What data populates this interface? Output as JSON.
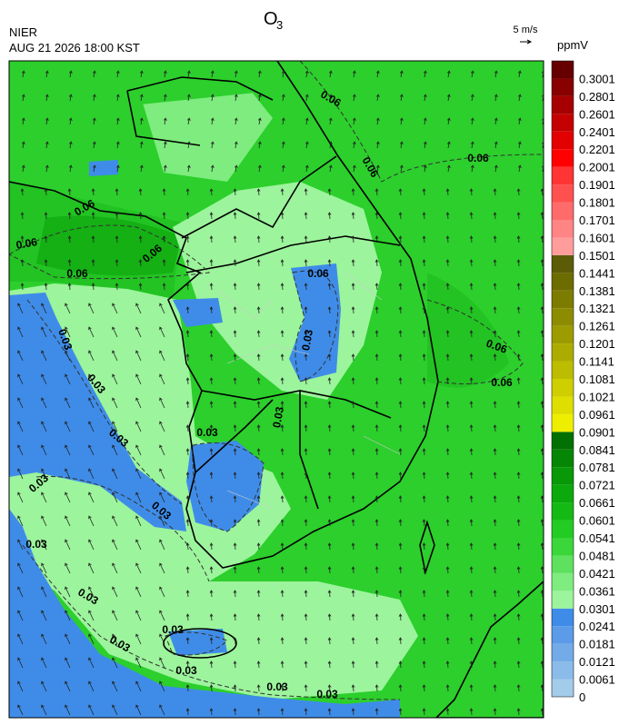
{
  "header": {
    "title": "O",
    "title_subscript": "3",
    "agency": "NIER",
    "datetime": "AUG 21 2026 18:00 KST"
  },
  "wind_legend": {
    "label": "5 m/s"
  },
  "colorbar": {
    "unit": "ppmV",
    "levels": [
      0,
      0.0061,
      0.0121,
      0.0181,
      0.0241,
      0.0301,
      0.0361,
      0.0421,
      0.0481,
      0.0541,
      0.0601,
      0.0661,
      0.0721,
      0.0781,
      0.0841,
      0.0901,
      0.0961,
      0.1021,
      0.1081,
      0.1141,
      0.1201,
      0.1261,
      0.1321,
      0.1381,
      0.1441,
      0.1501,
      0.1601,
      0.1701,
      0.1801,
      0.1901,
      0.2001,
      0.2201,
      0.2401,
      0.2601,
      0.2801,
      0.3001
    ],
    "colors": [
      "#a3cbea",
      "#8bbbe9",
      "#73abe8",
      "#5b9be8",
      "#3f8ce8",
      "#9cf49c",
      "#7eec7e",
      "#5ee15e",
      "#3ad63a",
      "#22cc22",
      "#14b914",
      "#0ca90c",
      "#089808",
      "#058605",
      "#037003",
      "#eeee00",
      "#dede00",
      "#cece00",
      "#bcbc00",
      "#acac00",
      "#9c9c00",
      "#8c8c00",
      "#7c7c00",
      "#6c6c00",
      "#5c5c08",
      "#ff9d9d",
      "#ff8585",
      "#ff6b6b",
      "#ff5050",
      "#ff3434",
      "#ff0000",
      "#e20000",
      "#c40000",
      "#a60000",
      "#880000",
      "#660000"
    ]
  },
  "map": {
    "contour_labels": [
      "0.06",
      "0.06",
      "0.06",
      "0.06",
      "0.06",
      "0.06",
      "0.06",
      "0.06",
      "0.06",
      "0.06",
      "0.03",
      "0.03",
      "0.03",
      "0.03",
      "0.03",
      "0.03",
      "0.03",
      "0.03",
      "0.03",
      "0.03",
      "0.03",
      "0.03",
      "0.03",
      "0.03",
      "0.03"
    ]
  }
}
